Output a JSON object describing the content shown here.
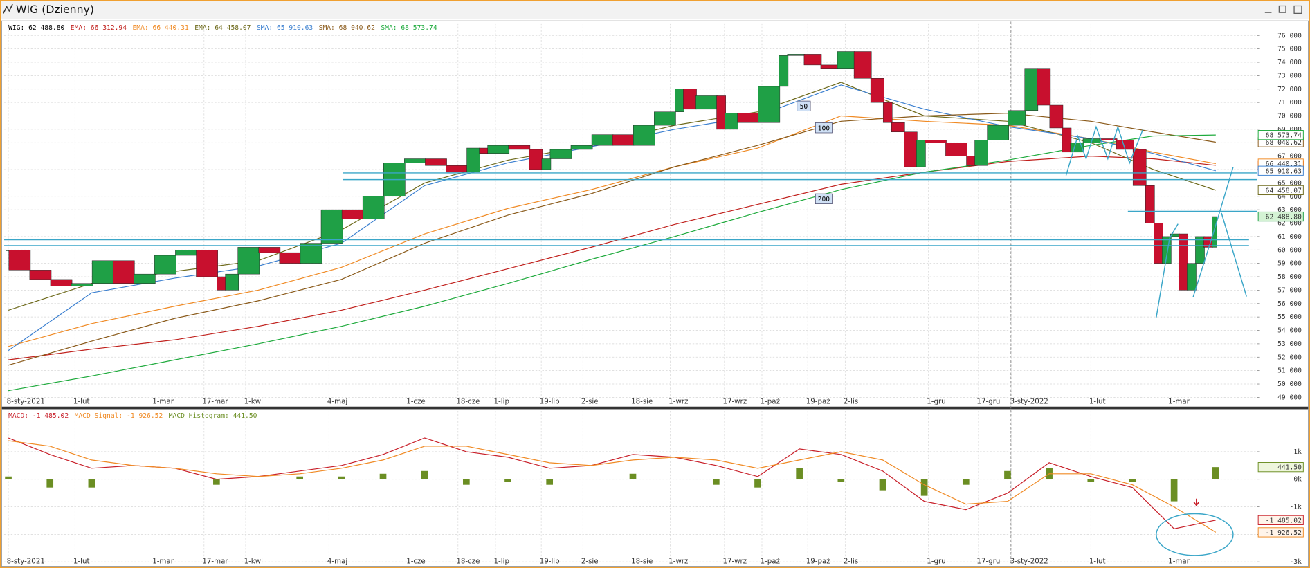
{
  "chart_data": [
    {
      "type": "candlestick",
      "title": "WIG (Dzienny)",
      "x": [
        0,
        5,
        10,
        15,
        20,
        25,
        30,
        35,
        40,
        45,
        50,
        52,
        55,
        60,
        65,
        70,
        75,
        80,
        85,
        90,
        95,
        100,
        105,
        110,
        113,
        115,
        120,
        125,
        128,
        130,
        135,
        140,
        145,
        150,
        155,
        160,
        162,
        165,
        170,
        172,
        175,
        180,
        185,
        187,
        191,
        195,
        199,
        203,
        207,
        210,
        212,
        215,
        218,
        220,
        225,
        230,
        232,
        235,
        240,
        244,
        247,
        250,
        253,
        255,
        258,
        262,
        266,
        270,
        273,
        275,
        277,
        279,
        281,
        283,
        285,
        287,
        289,
        290
      ],
      "values": [
        60000,
        58500,
        57800,
        57300,
        57500,
        59200,
        57500,
        58200,
        59600,
        60000,
        58000,
        57000,
        58200,
        60200,
        59800,
        59000,
        60500,
        63000,
        62300,
        64000,
        66500,
        66800,
        66300,
        65800,
        67600,
        67200,
        67800,
        67500,
        66000,
        66800,
        67500,
        67800,
        68600,
        67800,
        69300,
        70300,
        72000,
        70500,
        71500,
        69000,
        70200,
        69500,
        72200,
        74500,
        74600,
        73800,
        73500,
        74800,
        72800,
        71000,
        69500,
        68800,
        66200,
        68200,
        68000,
        67000,
        66300,
        68200,
        69300,
        70400,
        73500,
        70800,
        69100,
        67300,
        68000,
        68300,
        68200,
        67500,
        64800,
        62000,
        59000,
        61000,
        61200,
        57000,
        59000,
        61000,
        60200,
        62488.8
      ],
      "value_label": "62 488.80",
      "up_color": "#1fa046",
      "down_color": "#c8102e",
      "color": "#000000",
      "series": [
        {
          "name": "EMA",
          "color": "#c0201c",
          "x": [
            0,
            20,
            40,
            60,
            80,
            100,
            120,
            140,
            160,
            180,
            200,
            220,
            240,
            260,
            275,
            290
          ],
          "values": [
            51800,
            52600,
            53300,
            54300,
            55500,
            57000,
            58600,
            60200,
            61900,
            63400,
            64900,
            65800,
            66600,
            67000,
            66800,
            66312.94
          ],
          "value_label": "66 312.94"
        },
        {
          "name": "EMA",
          "color": "#f08a24",
          "x": [
            0,
            20,
            40,
            60,
            80,
            100,
            120,
            140,
            160,
            180,
            200,
            220,
            240,
            260,
            275,
            290
          ],
          "values": [
            52800,
            54500,
            55800,
            57000,
            58700,
            61200,
            63100,
            64500,
            66200,
            67600,
            70000,
            69600,
            69300,
            68300,
            67300,
            66440.31
          ],
          "value_label": "66 440.31"
        },
        {
          "name": "EMA",
          "color": "#6e6a1c",
          "x": [
            0,
            20,
            40,
            60,
            80,
            100,
            120,
            140,
            160,
            180,
            200,
            220,
            240,
            260,
            275,
            290
          ],
          "values": [
            55500,
            57500,
            58400,
            59200,
            61500,
            65000,
            66700,
            67800,
            69300,
            70300,
            72500,
            70000,
            69600,
            68000,
            66000,
            64458.07
          ],
          "value_label": "64 458.07"
        },
        {
          "name": "SMA",
          "color": "#3c80d0",
          "x": [
            0,
            20,
            40,
            60,
            80,
            100,
            120,
            140,
            160,
            180,
            200,
            220,
            240,
            260,
            275,
            290
          ],
          "values": [
            52500,
            56800,
            57900,
            58800,
            60500,
            64800,
            66500,
            67700,
            69000,
            70000,
            72300,
            70500,
            69200,
            68300,
            67200,
            65910.63
          ],
          "value_label": "65 910.63"
        },
        {
          "name": "SMA",
          "color": "#8a5a1a",
          "x": [
            0,
            20,
            40,
            60,
            80,
            100,
            120,
            140,
            160,
            180,
            200,
            220,
            240,
            260,
            275,
            290
          ],
          "values": [
            51400,
            53200,
            54900,
            56200,
            57800,
            60500,
            62600,
            64200,
            66200,
            67800,
            69600,
            70000,
            70200,
            69600,
            68800,
            68040.62
          ],
          "value_label": "68 040.62"
        },
        {
          "name": "SMA",
          "color": "#1eaa3c",
          "x": [
            0,
            20,
            40,
            60,
            80,
            100,
            120,
            140,
            160,
            180,
            200,
            220,
            240,
            260,
            275,
            290
          ],
          "values": [
            49500,
            50600,
            51800,
            53000,
            54300,
            55800,
            57500,
            59300,
            61000,
            62800,
            64500,
            65800,
            66700,
            67800,
            68500,
            68573.74
          ],
          "value_label": "68 573.74"
        }
      ],
      "legend": [
        "WIG: 62 488.80",
        "EMA: 66 312.94",
        "EMA: 66 440.31",
        "EMA: 64 458.07",
        "SMA: 65 910.63",
        "SMA: 68 040.62",
        "SMA: 68 573.74"
      ],
      "annotations": [
        "50",
        "100",
        "200"
      ],
      "xlim": [
        -1,
        300
      ],
      "xticks": [
        {
          "value": 0,
          "label": "8-sty-2021"
        },
        {
          "value": 16,
          "label": "1-lut"
        },
        {
          "value": 35,
          "label": "1-mar"
        },
        {
          "value": 47,
          "label": "17-mar"
        },
        {
          "value": 57,
          "label": "1-kwi"
        },
        {
          "value": 77,
          "label": "4-maj"
        },
        {
          "value": 96,
          "label": "1-cze"
        },
        {
          "value": 108,
          "label": "18-cze"
        },
        {
          "value": 117,
          "label": "1-lip"
        },
        {
          "value": 128,
          "label": "19-lip"
        },
        {
          "value": 138,
          "label": "2-sie"
        },
        {
          "value": 150,
          "label": "18-sie"
        },
        {
          "value": 159,
          "label": "1-wrz"
        },
        {
          "value": 172,
          "label": "17-wrz"
        },
        {
          "value": 181,
          "label": "1-paź"
        },
        {
          "value": 192,
          "label": "19-paź"
        },
        {
          "value": 201,
          "label": "2-lis"
        },
        {
          "value": 221,
          "label": "1-gru"
        },
        {
          "value": 233,
          "label": "17-gru"
        },
        {
          "value": 241,
          "label": "3-sty-2022"
        },
        {
          "value": 260,
          "label": "1-lut"
        },
        {
          "value": 279,
          "label": "1-mar"
        }
      ],
      "ylim": [
        48300,
        76900
      ],
      "yticks": [
        {
          "value": 49000,
          "label": "49 000"
        },
        {
          "value": 50000,
          "label": "50 000"
        },
        {
          "value": 51000,
          "label": "51 000"
        },
        {
          "value": 52000,
          "label": "52 000"
        },
        {
          "value": 53000,
          "label": "53 000"
        },
        {
          "value": 54000,
          "label": "54 000"
        },
        {
          "value": 55000,
          "label": "55 000"
        },
        {
          "value": 56000,
          "label": "56 000"
        },
        {
          "value": 57000,
          "label": "57 000"
        },
        {
          "value": 58000,
          "label": "58 000"
        },
        {
          "value": 59000,
          "label": "59 000"
        },
        {
          "value": 60000,
          "label": "60 000"
        },
        {
          "value": 61000,
          "label": "61 000"
        },
        {
          "value": 62000,
          "label": "62 000"
        },
        {
          "value": 63000,
          "label": "63 000"
        },
        {
          "value": 64000,
          "label": "64 000"
        },
        {
          "value": 65000,
          "label": "65 000"
        },
        {
          "value": 66000,
          "label": "66 000"
        },
        {
          "value": 67000,
          "label": "67 000"
        },
        {
          "value": 68000,
          "label": "68 000"
        },
        {
          "value": 69000,
          "label": "69 000"
        },
        {
          "value": 70000,
          "label": "70 000"
        },
        {
          "value": 71000,
          "label": "71 000"
        },
        {
          "value": 72000,
          "label": "72 000"
        },
        {
          "value": 73000,
          "label": "73 000"
        },
        {
          "value": 74000,
          "label": "74 000"
        },
        {
          "value": 75000,
          "label": "75 000"
        },
        {
          "value": 76000,
          "label": "76 000"
        }
      ],
      "grid": true
    },
    {
      "type": "macd",
      "x": [
        0,
        10,
        20,
        30,
        40,
        50,
        60,
        70,
        80,
        90,
        100,
        110,
        120,
        130,
        140,
        150,
        160,
        170,
        180,
        190,
        200,
        210,
        220,
        230,
        240,
        250,
        260,
        270,
        280,
        290
      ],
      "series": [
        {
          "name": "MACD",
          "color": "#c8202a",
          "values": [
            1500,
            900,
            400,
            500,
            400,
            0,
            100,
            300,
            500,
            900,
            1500,
            1000,
            800,
            400,
            500,
            900,
            800,
            500,
            100,
            1100,
            900,
            300,
            -800,
            -1100,
            -500,
            600,
            100,
            -300,
            -1800,
            -1485.02
          ],
          "value_label": "-1 485.02"
        },
        {
          "name": "MACD Signal",
          "color": "#f08a24",
          "values": [
            1400,
            1200,
            700,
            500,
            400,
            200,
            100,
            200,
            400,
            700,
            1200,
            1200,
            900,
            600,
            500,
            700,
            800,
            700,
            400,
            700,
            1000,
            700,
            -200,
            -900,
            -800,
            200,
            200,
            -200,
            -1000,
            -1926.52
          ],
          "value_label": "-1 926.52"
        }
      ],
      "histogram": {
        "name": "MACD Histogram",
        "color": "#6b8e23",
        "values": [
          100,
          -300,
          -300,
          0,
          0,
          -200,
          0,
          100,
          100,
          200,
          300,
          -200,
          -100,
          -200,
          0,
          200,
          0,
          -200,
          -300,
          400,
          -100,
          -400,
          -600,
          -200,
          300,
          400,
          -100,
          -100,
          -800,
          441.5
        ],
        "value_label": "441.50"
      },
      "legend": [
        "MACD: -1 485.02",
        "MACD Signal: -1 926.52",
        "MACD Histogram: 441.50"
      ],
      "xlim": [
        -1,
        300
      ],
      "xticks": [
        {
          "value": 0,
          "label": "8-sty-2021"
        },
        {
          "value": 16,
          "label": "1-lut"
        },
        {
          "value": 35,
          "label": "1-mar"
        },
        {
          "value": 47,
          "label": "17-mar"
        },
        {
          "value": 57,
          "label": "1-kwi"
        },
        {
          "value": 77,
          "label": "4-maj"
        },
        {
          "value": 96,
          "label": "1-cze"
        },
        {
          "value": 108,
          "label": "18-cze"
        },
        {
          "value": 117,
          "label": "1-lip"
        },
        {
          "value": 128,
          "label": "19-lip"
        },
        {
          "value": 138,
          "label": "2-sie"
        },
        {
          "value": 150,
          "label": "18-sie"
        },
        {
          "value": 159,
          "label": "1-wrz"
        },
        {
          "value": 172,
          "label": "17-wrz"
        },
        {
          "value": 181,
          "label": "1-paź"
        },
        {
          "value": 192,
          "label": "19-paź"
        },
        {
          "value": 201,
          "label": "2-lis"
        },
        {
          "value": 221,
          "label": "1-gru"
        },
        {
          "value": 233,
          "label": "17-gru"
        },
        {
          "value": 241,
          "label": "3-sty-2022"
        },
        {
          "value": 260,
          "label": "1-lut"
        },
        {
          "value": 279,
          "label": "1-mar"
        }
      ],
      "ylim": [
        -3100,
        2480
      ],
      "yticks": [
        {
          "value": 1000,
          "label": "1k"
        },
        {
          "value": 0,
          "label": "0k"
        },
        {
          "value": -1000,
          "label": "-1k"
        },
        {
          "value": -2000,
          "label": "-2k"
        },
        {
          "value": -3000,
          "label": "-3k"
        }
      ],
      "grid": true
    }
  ]
}
